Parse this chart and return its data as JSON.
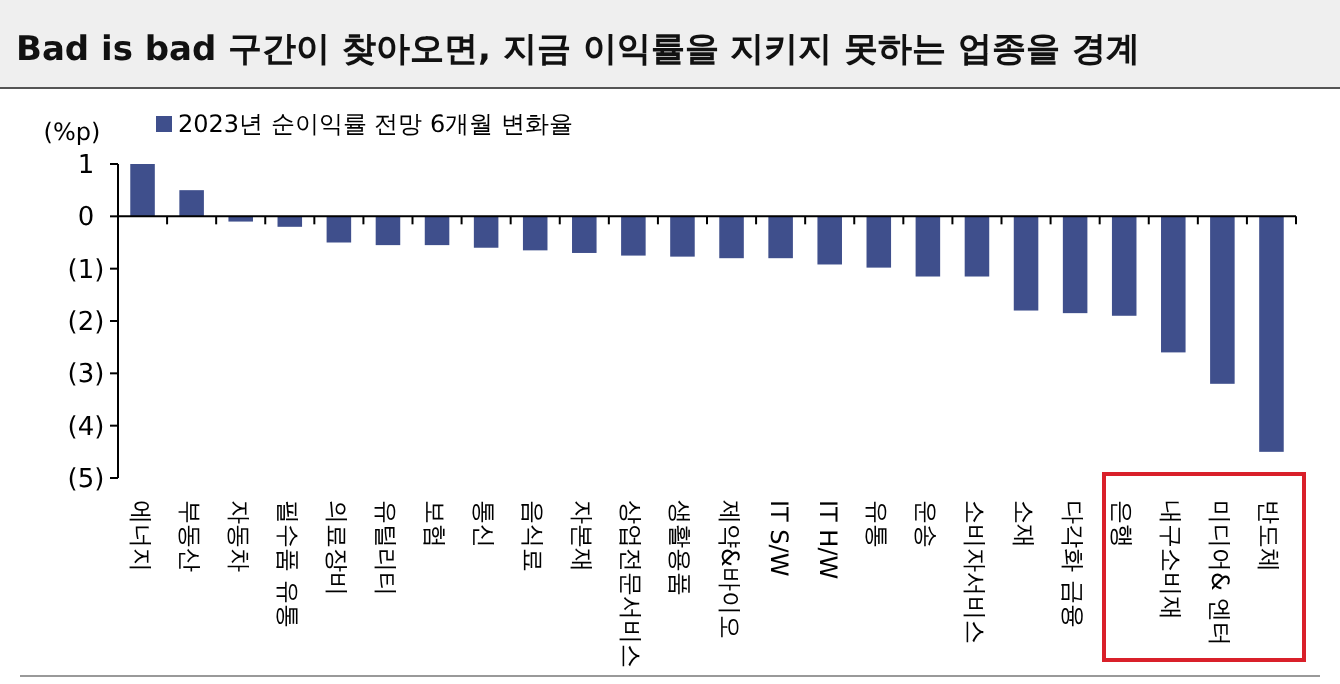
{
  "chart_data": {
    "type": "bar",
    "title": "Bad is bad 구간이 찾아오면, 지금 이익률을 지키지 못하는 업종을 경계",
    "ylabel": "(%p)",
    "categories": [
      "에너지",
      "부동산",
      "자동차",
      "필수품 유통",
      "의료장비",
      "유틸리티",
      "보험",
      "통신",
      "음식료",
      "자본재",
      "상업전문서비스",
      "생활용품",
      "제약&바이오",
      "IT S/W",
      "IT H/W",
      "유통",
      "운송",
      "소비자서비스",
      "소재",
      "다각화 금융",
      "은행",
      "내구소비재",
      "미디어& 엔터",
      "반도체"
    ],
    "series": [
      {
        "name": "2023년 순이익률 전망 6개월 변화율",
        "color": "#3f4f8c",
        "values": [
          1.0,
          0.5,
          -0.1,
          -0.2,
          -0.5,
          -0.55,
          -0.55,
          -0.6,
          -0.65,
          -0.7,
          -0.75,
          -0.77,
          -0.8,
          -0.8,
          -0.92,
          -0.98,
          -1.15,
          -1.15,
          -1.8,
          -1.85,
          -1.9,
          -2.6,
          -3.2,
          -4.5
        ]
      }
    ],
    "ylim": [
      -5,
      1
    ],
    "yticks": [
      1,
      0,
      {
        "value": -1,
        "label": "(1)"
      },
      {
        "value": -2,
        "label": "(2)"
      },
      {
        "value": -3,
        "label": "(3)"
      },
      {
        "value": -4,
        "label": "(4)"
      },
      {
        "value": -5,
        "label": "(5)"
      }
    ],
    "legend": "top left"
  }
}
